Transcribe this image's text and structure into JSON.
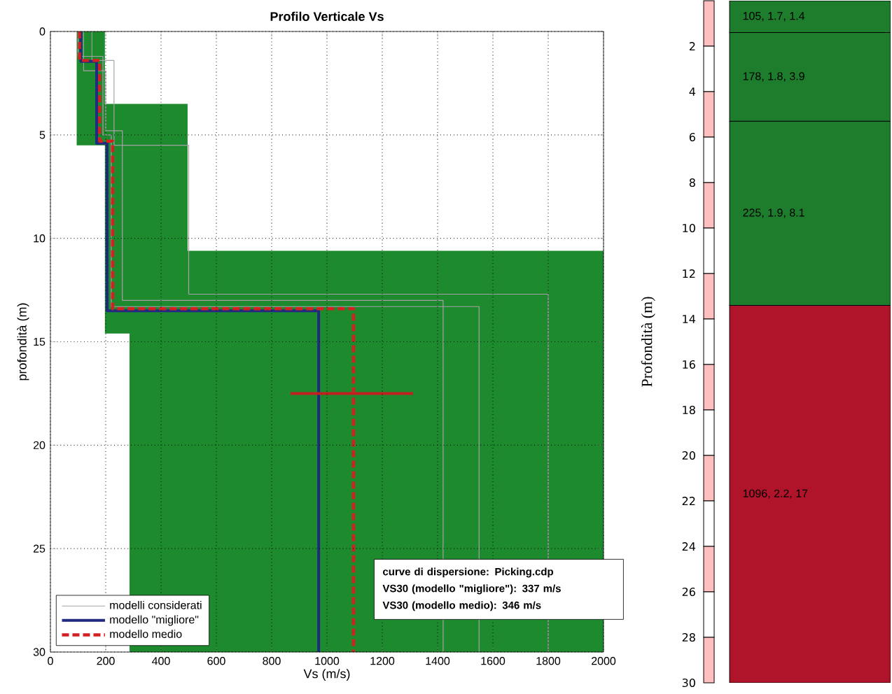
{
  "chart_data": [
    {
      "type": "line",
      "title": "Profilo Verticale Vs",
      "xlabel": "Vs (m/s)",
      "ylabel": "profondità (m)",
      "xlim": [
        0,
        2000
      ],
      "ylim": [
        30,
        0
      ],
      "xticks": [
        0,
        200,
        400,
        600,
        800,
        1000,
        1200,
        1400,
        1600,
        1800,
        2000
      ],
      "yticks": [
        0,
        5,
        10,
        15,
        20,
        25,
        30
      ],
      "grid": true,
      "legend": "bottom left",
      "series": [
        {
          "type": "area",
          "color": "#1e8a2e",
          "x": [
            95,
            197,
            197,
            496,
            496,
            2000,
            2000,
            286,
            286,
            197,
            197,
            95
          ],
          "values": [
            0,
            0,
            3.5,
            3.5,
            10.6,
            10.6,
            30,
            30,
            14.6,
            14.6,
            5.5,
            5.5
          ]
        },
        {
          "name": "modelli considerati",
          "color": "#a8a0a8",
          "x": [
            150,
            150,
            230,
            230,
            500,
            500,
            1800,
            1800
          ],
          "values": [
            0,
            1.4,
            1.4,
            5.5,
            5.5,
            12.7,
            12.7,
            30
          ]
        },
        {
          "color": "#a8a0a8",
          "x": [
            120,
            120,
            200,
            200,
            260,
            260,
            1420,
            1420
          ],
          "values": [
            0,
            1.9,
            1.9,
            4.8,
            4.8,
            13.0,
            13.0,
            30
          ]
        },
        {
          "color": "#a8a0a8",
          "x": [
            100,
            100,
            190,
            190,
            220,
            220,
            1550,
            1550
          ],
          "values": [
            0,
            1.2,
            1.2,
            5.0,
            5.0,
            13.3,
            13.3,
            30
          ]
        },
        {
          "name": "modello \"migliore\"",
          "color": "#1f2a80",
          "line_style": "solid",
          "x": [
            110,
            110,
            167,
            167,
            205,
            205,
            970,
            970
          ],
          "values": [
            0,
            1.45,
            1.45,
            5.4,
            5.4,
            13.5,
            13.5,
            30
          ]
        },
        {
          "name": "modello medio",
          "color": "#d42020",
          "line_style": "dashed",
          "x": [
            105,
            105,
            178,
            178,
            225,
            225,
            1096,
            1096
          ],
          "values": [
            0,
            1.4,
            1.4,
            5.3,
            5.3,
            13.4,
            13.4,
            30
          ]
        },
        {
          "color": "#c02020",
          "line_style": "solid",
          "x": [
            868,
            1311
          ],
          "values": [
            17.5,
            17.5
          ]
        }
      ],
      "annotations": [
        "curve di dispersione: Picking.cdp",
        "VS30 (modello \"migliore\"): 337 m/s",
        "VS30 (modello medio): 346 m/s"
      ]
    },
    {
      "type": "bar",
      "stacked": true,
      "categories": [
        null
      ],
      "ylabel": "Profondità (m)",
      "ylim": [
        30,
        0
      ],
      "yticks": [
        2,
        4,
        6,
        8,
        10,
        12,
        14,
        16,
        18,
        20,
        22,
        24,
        26,
        28,
        30
      ],
      "tick_labels": "y",
      "series": [
        {
          "color": "#1e7d2c",
          "values": [
            1.4
          ],
          "value_labels": [
            "105, 1.7, 1.4"
          ]
        },
        {
          "color": "#1e7d2c",
          "values": [
            3.9
          ],
          "value_labels": [
            "178, 1.8, 3.9"
          ]
        },
        {
          "color": "#1e7d2c",
          "values": [
            8.1
          ],
          "value_labels": [
            "225, 1.9, 8.1"
          ]
        },
        {
          "color": "#b0142a",
          "values": [
            16.6
          ],
          "value_labels": [
            "1096, 2.2, 17"
          ]
        }
      ]
    }
  ]
}
